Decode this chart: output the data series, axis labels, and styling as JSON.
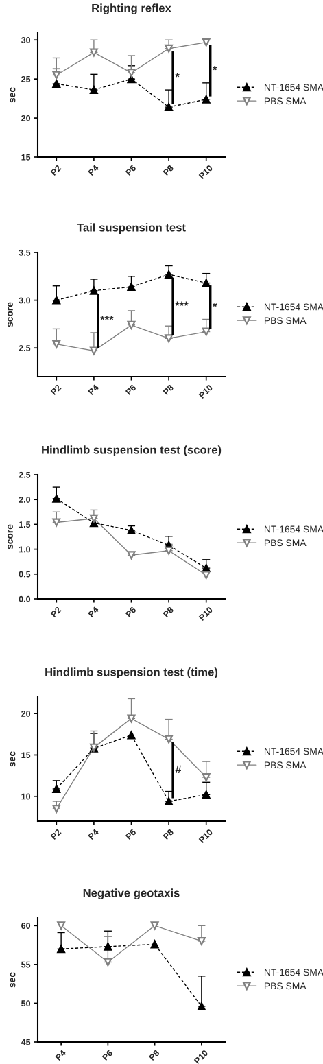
{
  "chart_data": [
    {
      "type": "line",
      "title": "Righting reflex",
      "ylabel": "sec",
      "categories": [
        "P2",
        "P4",
        "P6",
        "P8",
        "P10"
      ],
      "ylim": [
        15,
        30.9
      ],
      "yticks": [
        15,
        20,
        25,
        30
      ],
      "legend": "right",
      "grid": false,
      "series": [
        {
          "name": "NT-1654 SMA",
          "color": "#000000",
          "marker": "triangle",
          "line_style": "dashed",
          "values": [
            24.4,
            23.6,
            25.0,
            21.4,
            22.4
          ],
          "errors": [
            [
              24.4,
              26.3
            ],
            [
              23.6,
              25.6
            ],
            [
              25.0,
              26.7
            ],
            [
              21.4,
              23.6
            ],
            [
              22.4,
              24.5
            ]
          ]
        },
        {
          "name": "PBS SMA",
          "color": "#808080",
          "marker": "triangle",
          "line_style": "solid",
          "values": [
            25.5,
            28.4,
            25.8,
            28.9,
            29.7
          ],
          "errors": [
            [
              25.5,
              27.7
            ],
            [
              28.4,
              30.0
            ],
            [
              25.8,
              28.0
            ],
            [
              28.9,
              30.0
            ],
            null
          ]
        }
      ],
      "annotations": [
        {
          "text": "*",
          "x": "P8",
          "y": 28.9
        },
        {
          "text": "*",
          "x": "P10",
          "y": 29.7
        }
      ]
    },
    {
      "type": "line",
      "title": "Tail suspension test",
      "ylabel": "score",
      "categories": [
        "P2",
        "P4",
        "P6",
        "P8",
        "P10"
      ],
      "ylim": [
        2.2,
        3.5
      ],
      "yticks": [
        2.5,
        {
          "value": 3,
          "label": "3.0"
        },
        3.5
      ],
      "legend": "right",
      "grid": false,
      "series": [
        {
          "name": "NT-1654 SMA",
          "color": "#000000",
          "marker": "triangle",
          "line_style": "dashed",
          "values": [
            3.0,
            3.1,
            3.14,
            3.27,
            3.18
          ],
          "errors": [
            [
              3.0,
              3.15
            ],
            [
              3.1,
              3.22
            ],
            [
              3.14,
              3.25
            ],
            [
              3.27,
              3.36
            ],
            [
              3.18,
              3.28
            ]
          ]
        },
        {
          "name": "PBS SMA",
          "color": "#808080",
          "marker": "triangle",
          "line_style": "solid",
          "values": [
            2.54,
            2.47,
            2.74,
            2.6,
            2.67
          ],
          "errors": [
            [
              2.54,
              2.7
            ],
            [
              2.47,
              2.66
            ],
            [
              2.74,
              2.89
            ],
            [
              2.6,
              2.73
            ],
            [
              2.67,
              2.8
            ]
          ]
        }
      ],
      "annotations": [
        {
          "text": "***",
          "x": "P4",
          "y": 3.1
        },
        {
          "text": "***",
          "x": "P8",
          "y": 3.27
        },
        {
          "text": "*",
          "x": "P10",
          "y": 3.18
        }
      ]
    },
    {
      "type": "line",
      "title": "Hindlimb suspension test (score)",
      "ylabel": "score",
      "categories": [
        "P2",
        "P4",
        "P6",
        "P8",
        "P10"
      ],
      "ylim": [
        0,
        2.5
      ],
      "yticks": [
        {
          "value": 0,
          "label": "0.0"
        },
        0.5,
        {
          "value": 1,
          "label": "1.0"
        },
        1.5,
        {
          "value": 2,
          "label": "2.0"
        },
        2.5
      ],
      "legend": "right",
      "grid": false,
      "series": [
        {
          "name": "NT-1654 SMA",
          "color": "#000000",
          "marker": "triangle",
          "line_style": "dashed",
          "values": [
            2.02,
            1.53,
            1.38,
            1.08,
            0.62
          ],
          "errors": [
            [
              2.02,
              2.25
            ],
            null,
            [
              1.38,
              1.47
            ],
            [
              1.08,
              1.26
            ],
            [
              0.62,
              0.79
            ]
          ]
        },
        {
          "name": "PBS SMA",
          "color": "#808080",
          "marker": "triangle",
          "line_style": "solid",
          "values": [
            1.54,
            1.62,
            0.88,
            0.97,
            0.48
          ],
          "errors": [
            [
              1.54,
              1.75
            ],
            [
              1.62,
              1.79
            ],
            [
              0.88,
              0.94
            ],
            [
              0.97,
              1.1
            ],
            null
          ]
        }
      ]
    },
    {
      "type": "line",
      "title": "Hindlimb suspension test (time)",
      "ylabel": "sec",
      "categories": [
        "P2",
        "P4",
        "P6",
        "P8",
        "P10"
      ],
      "ylim": [
        7,
        22
      ],
      "yticks": [
        10,
        15,
        20
      ],
      "legend": "right",
      "grid": false,
      "series": [
        {
          "name": "NT-1654 SMA",
          "color": "#000000",
          "marker": "triangle",
          "line_style": "dashed",
          "values": [
            10.9,
            15.8,
            17.4,
            9.4,
            10.2
          ],
          "errors": [
            [
              10.9,
              11.9
            ],
            [
              15.8,
              17.6
            ],
            null,
            [
              9.4,
              10.6
            ],
            [
              10.2,
              11.7
            ]
          ]
        },
        {
          "name": "PBS SMA",
          "color": "#808080",
          "marker": "triangle",
          "line_style": "solid",
          "values": [
            8.5,
            15.9,
            19.4,
            16.9,
            12.3
          ],
          "errors": [
            [
              8.5,
              9.4
            ],
            [
              15.9,
              17.9
            ],
            [
              19.4,
              21.8
            ],
            [
              16.9,
              19.3
            ],
            [
              12.3,
              14.2
            ]
          ]
        }
      ],
      "annotations": [
        {
          "text": "#",
          "x": "P8",
          "y": 16.9
        }
      ]
    },
    {
      "type": "line",
      "title": "Negative geotaxis",
      "ylabel": "sec",
      "categories": [
        "P4",
        "P6",
        "P8",
        "P10"
      ],
      "ylim": [
        45,
        61
      ],
      "yticks": [
        45,
        50,
        55,
        60
      ],
      "legend": "right",
      "grid": false,
      "series": [
        {
          "name": "NT-1654 SMA",
          "color": "#000000",
          "marker": "triangle",
          "line_style": "dashed",
          "values": [
            57.0,
            57.3,
            57.6,
            49.6
          ],
          "errors": [
            [
              57.0,
              59.1
            ],
            [
              57.3,
              59.3
            ],
            null,
            [
              49.6,
              53.5
            ]
          ]
        },
        {
          "name": "PBS SMA",
          "color": "#808080",
          "marker": "triangle",
          "line_style": "solid",
          "values": [
            60.0,
            55.3,
            60.0,
            58.0
          ],
          "errors": [
            null,
            [
              55.3,
              58.6
            ],
            null,
            [
              58.0,
              60.0
            ]
          ]
        }
      ]
    }
  ]
}
